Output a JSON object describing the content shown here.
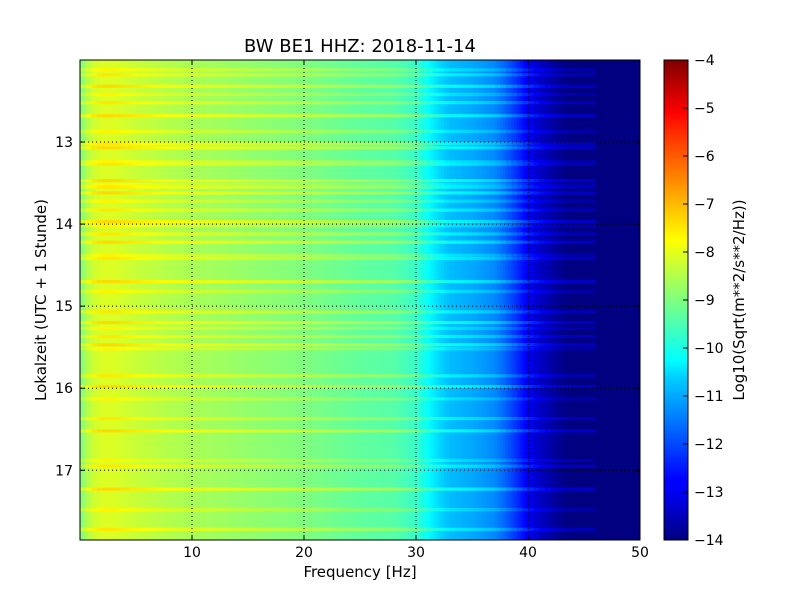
{
  "chart_data": {
    "type": "heatmap",
    "title": "BW BE1 HHZ: 2018-11-14",
    "xlabel": "Frequency [Hz]",
    "ylabel": "Lokalzeit (UTC + 1 Stunde)",
    "xlim": [
      0,
      50
    ],
    "ylim": [
      12.0,
      17.85
    ],
    "y_inverted": true,
    "xticks": [
      10,
      20,
      30,
      40,
      50
    ],
    "yticks": [
      13,
      14,
      15,
      16,
      17
    ],
    "grid": true,
    "colormap": "jet",
    "colorbar": {
      "label": "Log10(Sqrt(m**2/s**2/Hz))",
      "range": [
        -14,
        -4
      ],
      "ticks": [
        -4,
        -5,
        -6,
        -7,
        -8,
        -9,
        -10,
        -11,
        -12,
        -13,
        -14
      ]
    },
    "spectrum_profile": {
      "frequency_hz": [
        0,
        1,
        2,
        3,
        5,
        8,
        10,
        15,
        20,
        25,
        28,
        30,
        31,
        32,
        33,
        35,
        37,
        38,
        39,
        40,
        41,
        42,
        43,
        44,
        45,
        50
      ],
      "log10_amplitude": [
        -9.0,
        -8.3,
        -8.1,
        -8.1,
        -8.3,
        -8.5,
        -8.6,
        -8.8,
        -9.0,
        -9.3,
        -9.4,
        -9.7,
        -10.2,
        -10.6,
        -10.9,
        -11.1,
        -11.4,
        -11.8,
        -12.3,
        -12.9,
        -13.3,
        -13.6,
        -13.9,
        -14.0,
        -14.0,
        -14.0
      ]
    },
    "bright_bands_hour": [
      12.12,
      12.18,
      12.32,
      12.42,
      12.52,
      12.68,
      12.87,
      13.02,
      13.07,
      13.24,
      13.27,
      13.47,
      13.52,
      13.55,
      13.62,
      13.72,
      13.83,
      13.97,
      14.02,
      14.12,
      14.22,
      14.38,
      14.42,
      14.7,
      14.82,
      15.07,
      15.2,
      15.27,
      15.37,
      15.47,
      15.52,
      15.85,
      15.98,
      16.13,
      16.37,
      16.52,
      16.88,
      16.95,
      17.23,
      17.48,
      17.72
    ]
  }
}
